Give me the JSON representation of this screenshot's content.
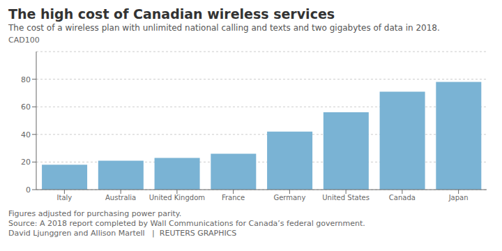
{
  "chart_data": {
    "type": "bar",
    "title": "The high cost of Canadian wireless services",
    "subtitle": "The cost of a wireless plan with unlimited national calling and texts and two gigabytes of data in 2018.",
    "ylabel": "CAD100",
    "categories": [
      "Italy",
      "Australia",
      "United Kingdom",
      "France",
      "Germany",
      "United States",
      "Canada",
      "Japan"
    ],
    "values": [
      18,
      21,
      23,
      26,
      42,
      56,
      71,
      78
    ],
    "color": "#7ab3d4",
    "ylim": [
      0,
      100
    ],
    "yticks": [
      0,
      20,
      40,
      60,
      80
    ],
    "grid": true,
    "annotations": [
      "Figures adjusted for purchasing power parity.",
      "Source: A 2018 report completed by Wall Communications for Canada’s federal government.",
      "David Ljunggren and Allison Martell   |  REUTERS GRAPHICS"
    ]
  }
}
